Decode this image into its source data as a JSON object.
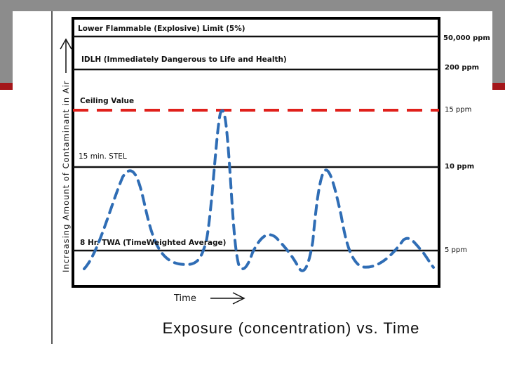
{
  "diagram": {
    "y_axis_label": "Increasing Amount of Contaminant in Air",
    "x_axis_label": "Time",
    "title": "Exposure (concentration) vs. Time",
    "thresholds": [
      {
        "label": "Lower Flammable (Explosive) Limit (5%)",
        "value": "50,000 ppm",
        "style": "solid",
        "color": "#111111"
      },
      {
        "label": "IDLH (Immediately Dangerous to Life and Health)",
        "value": "200 ppm",
        "style": "solid",
        "color": "#111111"
      },
      {
        "label": "Ceiling Value",
        "value": "15 ppm",
        "style": "dashed",
        "color": "#e0201b"
      },
      {
        "label": "15 min. STEL",
        "value": "10 ppm",
        "style": "solid",
        "color": "#111111"
      },
      {
        "label": "8 Hr. TWA (TimeWeighted Average)",
        "value": "5 ppm",
        "style": "solid",
        "color": "#111111"
      }
    ],
    "exposure_curve_color": "#2f6db5",
    "ceiling_color": "#e0201b",
    "line_color": "#111111",
    "arrow_icons": [
      "y-axis-arrow-icon",
      "x-axis-arrow-icon"
    ]
  }
}
